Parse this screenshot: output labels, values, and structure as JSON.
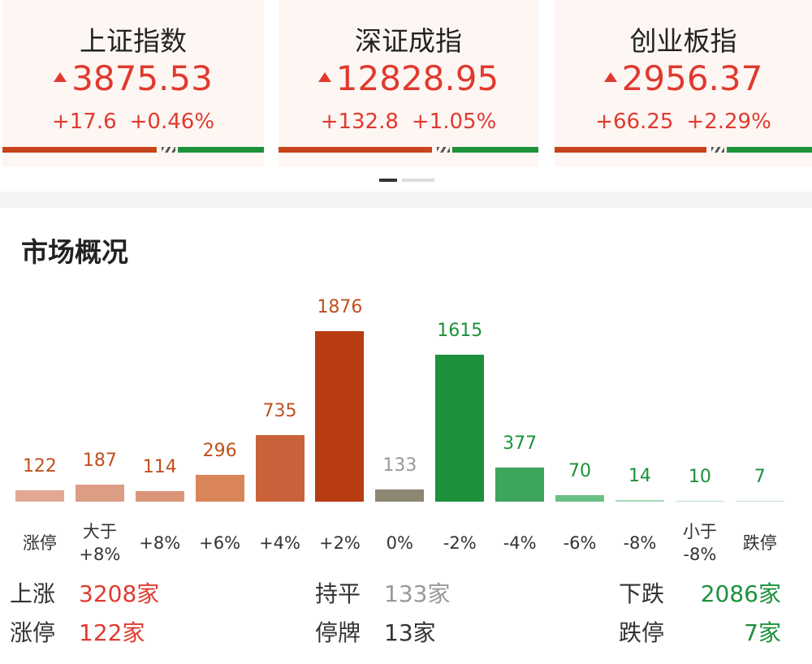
{
  "index_cards": [
    {
      "name": "上证指数",
      "value": "3875.53",
      "change": "+17.6",
      "change_pct": "+0.46%"
    },
    {
      "name": "深证成指",
      "value": "12828.95",
      "change": "+132.8",
      "change_pct": "+1.05%"
    },
    {
      "name": "创业板指",
      "value": "2956.37",
      "change": "+66.25",
      "change_pct": "+2.29%"
    }
  ],
  "section_title": "市场概况",
  "chart_data": {
    "type": "bar",
    "categories": [
      "涨停",
      "大于\n+8%",
      "+8%",
      "+6%",
      "+4%",
      "+2%",
      "0%",
      "-2%",
      "-4%",
      "-6%",
      "-8%",
      "小于\n-8%",
      "跌停"
    ],
    "values": [
      122,
      187,
      114,
      296,
      735,
      1876,
      133,
      1615,
      377,
      70,
      14,
      10,
      7
    ],
    "colors": [
      "#e2a893",
      "#dd9d84",
      "#da9579",
      "#d98459",
      "#c9623a",
      "#b73c12",
      "#8b8772",
      "#1b913a",
      "#3da55c",
      "#6cbf85",
      "#a3d9b3",
      "#b5e0c1",
      "#c6e7cf"
    ],
    "label_colors": [
      "#c0501e",
      "#c0501e",
      "#c0501e",
      "#c0501e",
      "#c0501e",
      "#c0501e",
      "#999999",
      "#1b913a",
      "#1b913a",
      "#1b913a",
      "#1b913a",
      "#1b913a",
      "#1b913a"
    ]
  },
  "summary": [
    [
      {
        "label": "上涨",
        "value": "3208家"
      },
      {
        "label": "持平",
        "value": "133家"
      },
      {
        "label": "下跌",
        "value": "2086家"
      }
    ],
    [
      {
        "label": "涨停",
        "value": "122家"
      },
      {
        "label": "停牌",
        "value": "13家"
      },
      {
        "label": "跌停",
        "value": "7家"
      }
    ]
  ]
}
